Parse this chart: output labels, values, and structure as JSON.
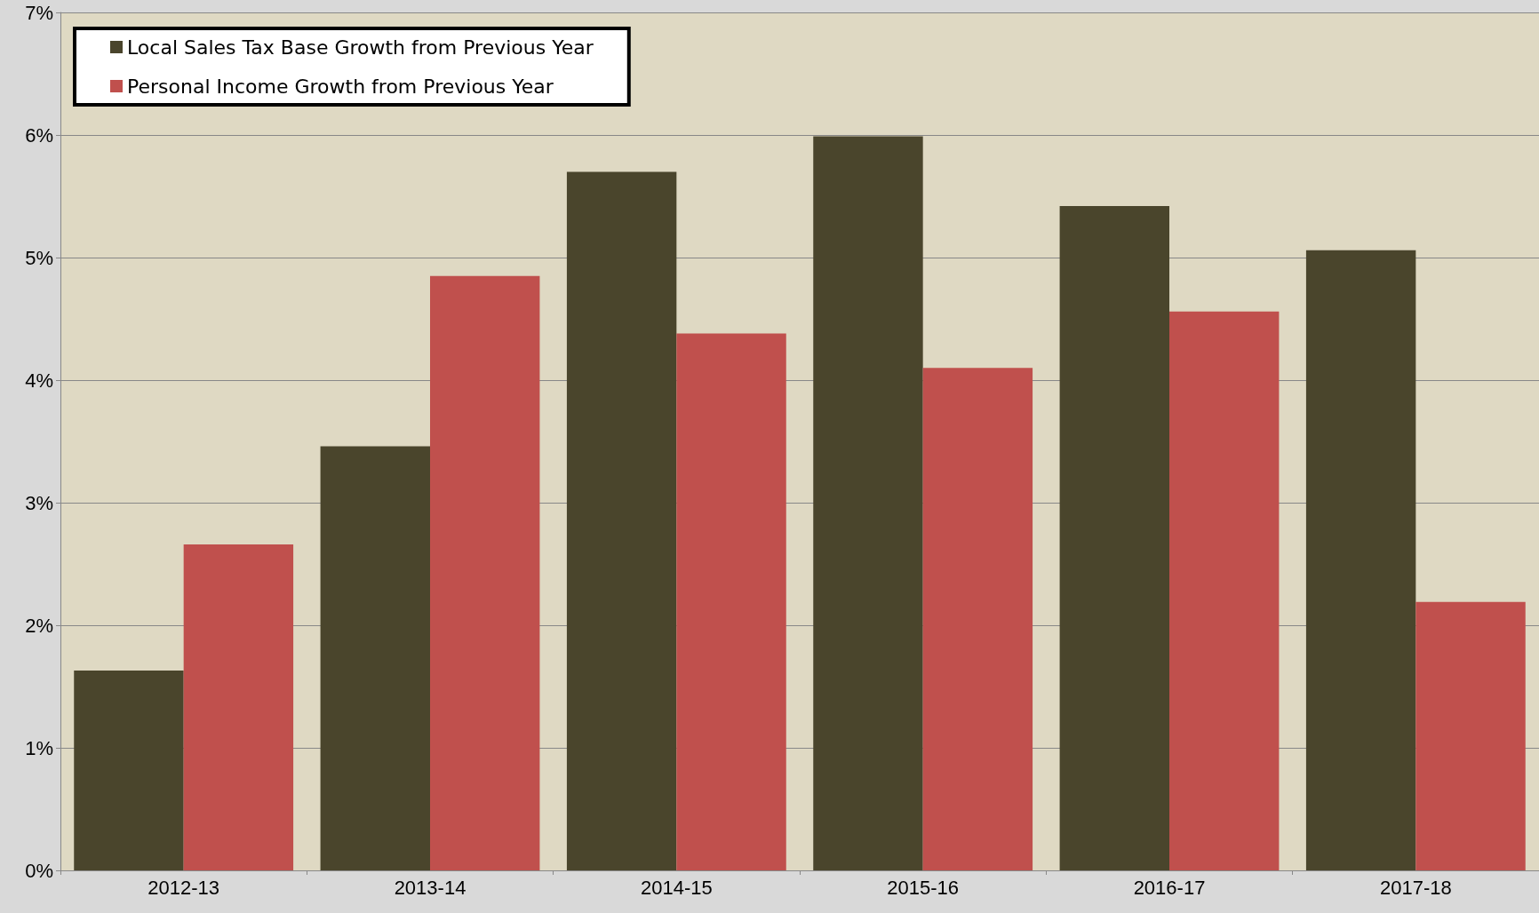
{
  "chart_data": {
    "type": "bar",
    "categories": [
      "2012-13",
      "2013-14",
      "2014-15",
      "2015-16",
      "2016-17",
      "2017-18"
    ],
    "series": [
      {
        "name": "Local Sales Tax Base Growth from Previous Year",
        "color": "#4a452c",
        "values": [
          1.63,
          3.46,
          5.7,
          5.99,
          5.42,
          5.06
        ]
      },
      {
        "name": "Personal Income Growth from Previous Year",
        "color": "#c0504d",
        "values": [
          2.66,
          4.85,
          4.38,
          4.1,
          4.56,
          2.19
        ]
      }
    ],
    "ylim": [
      0,
      7
    ],
    "yticks": [
      {
        "value": 0,
        "label": "0%"
      },
      {
        "value": 1,
        "label": "1%"
      },
      {
        "value": 2,
        "label": "2%"
      },
      {
        "value": 3,
        "label": "3%"
      },
      {
        "value": 4,
        "label": "4%"
      },
      {
        "value": 5,
        "label": "5%"
      },
      {
        "value": 6,
        "label": "6%"
      },
      {
        "value": 7,
        "label": "7%"
      }
    ],
    "grid": "y",
    "legend": "top left"
  }
}
